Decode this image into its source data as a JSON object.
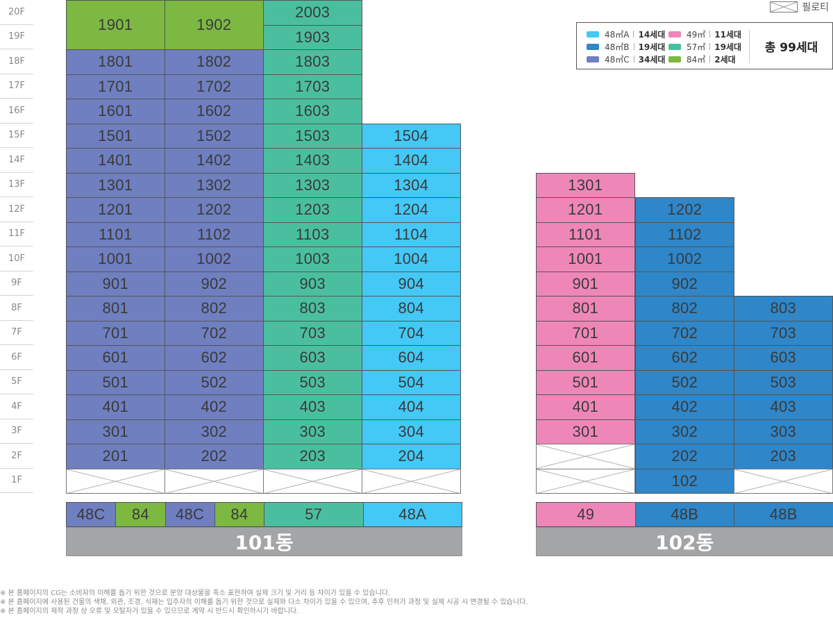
{
  "floors": [
    "20F",
    "19F",
    "18F",
    "17F",
    "16F",
    "15F",
    "14F",
    "13F",
    "12F",
    "11F",
    "10F",
    "9F",
    "8F",
    "7F",
    "6F",
    "5F",
    "4F",
    "3F",
    "2F",
    "1F"
  ],
  "colors": {
    "48A": "#44c8f5",
    "48B": "#2f86c8",
    "48C": "#6f7fc0",
    "49": "#ef86b8",
    "57": "#4abf9f",
    "84": "#7cb842",
    "piloti": "#ffffff"
  },
  "piloti_label": "필로티",
  "legend": {
    "items": [
      {
        "type": "48A",
        "area": "48㎡A",
        "count": "14세대"
      },
      {
        "type": "48B",
        "area": "48㎡B",
        "count": "19세대"
      },
      {
        "type": "48C",
        "area": "48㎡C",
        "count": "34세대"
      },
      {
        "type": "49",
        "area": "49㎡",
        "count": "11세대"
      },
      {
        "type": "57",
        "area": "57㎡",
        "count": "19세대"
      },
      {
        "type": "84",
        "area": "84㎡",
        "count": "2세대"
      }
    ],
    "total": "총 99세대"
  },
  "buildings": [
    {
      "name": "101동",
      "lines": [
        {
          "units": [
            {
              "floor": "20F",
              "label": "1901",
              "type": "84",
              "span": 2
            },
            {
              "floor": "18F",
              "label": "1801",
              "type": "48C"
            },
            {
              "floor": "17F",
              "label": "1701",
              "type": "48C"
            },
            {
              "floor": "16F",
              "label": "1601",
              "type": "48C"
            },
            {
              "floor": "15F",
              "label": "1501",
              "type": "48C"
            },
            {
              "floor": "14F",
              "label": "1401",
              "type": "48C"
            },
            {
              "floor": "13F",
              "label": "1301",
              "type": "48C"
            },
            {
              "floor": "12F",
              "label": "1201",
              "type": "48C"
            },
            {
              "floor": "11F",
              "label": "1101",
              "type": "48C"
            },
            {
              "floor": "10F",
              "label": "1001",
              "type": "48C"
            },
            {
              "floor": "9F",
              "label": "901",
              "type": "48C"
            },
            {
              "floor": "8F",
              "label": "801",
              "type": "48C"
            },
            {
              "floor": "7F",
              "label": "701",
              "type": "48C"
            },
            {
              "floor": "6F",
              "label": "601",
              "type": "48C"
            },
            {
              "floor": "5F",
              "label": "501",
              "type": "48C"
            },
            {
              "floor": "4F",
              "label": "401",
              "type": "48C"
            },
            {
              "floor": "3F",
              "label": "301",
              "type": "48C"
            },
            {
              "floor": "2F",
              "label": "201",
              "type": "48C"
            },
            {
              "floor": "1F",
              "label": "",
              "type": "piloti"
            }
          ]
        },
        {
          "units": [
            {
              "floor": "20F",
              "label": "1902",
              "type": "84",
              "span": 2
            },
            {
              "floor": "18F",
              "label": "1802",
              "type": "48C"
            },
            {
              "floor": "17F",
              "label": "1702",
              "type": "48C"
            },
            {
              "floor": "16F",
              "label": "1602",
              "type": "48C"
            },
            {
              "floor": "15F",
              "label": "1502",
              "type": "48C"
            },
            {
              "floor": "14F",
              "label": "1402",
              "type": "48C"
            },
            {
              "floor": "13F",
              "label": "1302",
              "type": "48C"
            },
            {
              "floor": "12F",
              "label": "1202",
              "type": "48C"
            },
            {
              "floor": "11F",
              "label": "1102",
              "type": "48C"
            },
            {
              "floor": "10F",
              "label": "1002",
              "type": "48C"
            },
            {
              "floor": "9F",
              "label": "902",
              "type": "48C"
            },
            {
              "floor": "8F",
              "label": "802",
              "type": "48C"
            },
            {
              "floor": "7F",
              "label": "702",
              "type": "48C"
            },
            {
              "floor": "6F",
              "label": "602",
              "type": "48C"
            },
            {
              "floor": "5F",
              "label": "502",
              "type": "48C"
            },
            {
              "floor": "4F",
              "label": "402",
              "type": "48C"
            },
            {
              "floor": "3F",
              "label": "302",
              "type": "48C"
            },
            {
              "floor": "2F",
              "label": "202",
              "type": "48C"
            },
            {
              "floor": "1F",
              "label": "",
              "type": "piloti"
            }
          ]
        },
        {
          "units": [
            {
              "floor": "20F",
              "label": "2003",
              "type": "57"
            },
            {
              "floor": "19F",
              "label": "1903",
              "type": "57"
            },
            {
              "floor": "18F",
              "label": "1803",
              "type": "57"
            },
            {
              "floor": "17F",
              "label": "1703",
              "type": "57"
            },
            {
              "floor": "16F",
              "label": "1603",
              "type": "57"
            },
            {
              "floor": "15F",
              "label": "1503",
              "type": "57"
            },
            {
              "floor": "14F",
              "label": "1403",
              "type": "57"
            },
            {
              "floor": "13F",
              "label": "1303",
              "type": "57"
            },
            {
              "floor": "12F",
              "label": "1203",
              "type": "57"
            },
            {
              "floor": "11F",
              "label": "1103",
              "type": "57"
            },
            {
              "floor": "10F",
              "label": "1003",
              "type": "57"
            },
            {
              "floor": "9F",
              "label": "903",
              "type": "57"
            },
            {
              "floor": "8F",
              "label": "803",
              "type": "57"
            },
            {
              "floor": "7F",
              "label": "703",
              "type": "57"
            },
            {
              "floor": "6F",
              "label": "603",
              "type": "57"
            },
            {
              "floor": "5F",
              "label": "503",
              "type": "57"
            },
            {
              "floor": "4F",
              "label": "403",
              "type": "57"
            },
            {
              "floor": "3F",
              "label": "303",
              "type": "57"
            },
            {
              "floor": "2F",
              "label": "203",
              "type": "57"
            },
            {
              "floor": "1F",
              "label": "",
              "type": "piloti"
            }
          ]
        },
        {
          "units": [
            {
              "floor": "15F",
              "label": "1504",
              "type": "48A"
            },
            {
              "floor": "14F",
              "label": "1404",
              "type": "48A"
            },
            {
              "floor": "13F",
              "label": "1304",
              "type": "48A"
            },
            {
              "floor": "12F",
              "label": "1204",
              "type": "48A"
            },
            {
              "floor": "11F",
              "label": "1104",
              "type": "48A"
            },
            {
              "floor": "10F",
              "label": "1004",
              "type": "48A"
            },
            {
              "floor": "9F",
              "label": "904",
              "type": "48A"
            },
            {
              "floor": "8F",
              "label": "804",
              "type": "48A"
            },
            {
              "floor": "7F",
              "label": "704",
              "type": "48A"
            },
            {
              "floor": "6F",
              "label": "604",
              "type": "48A"
            },
            {
              "floor": "5F",
              "label": "504",
              "type": "48A"
            },
            {
              "floor": "4F",
              "label": "404",
              "type": "48A"
            },
            {
              "floor": "3F",
              "label": "304",
              "type": "48A"
            },
            {
              "floor": "2F",
              "label": "204",
              "type": "48A"
            },
            {
              "floor": "1F",
              "label": "",
              "type": "piloti"
            }
          ]
        }
      ],
      "type_strip": [
        {
          "label": "48C",
          "type": "48C"
        },
        {
          "label": "84",
          "type": "84"
        },
        {
          "label": "48C",
          "type": "48C"
        },
        {
          "label": "84",
          "type": "84"
        },
        {
          "label": "57",
          "type": "57"
        },
        {
          "label": "48A",
          "type": "48A"
        }
      ]
    },
    {
      "name": "102동",
      "lines": [
        {
          "units": [
            {
              "floor": "13F",
              "label": "1301",
              "type": "49"
            },
            {
              "floor": "12F",
              "label": "1201",
              "type": "49"
            },
            {
              "floor": "11F",
              "label": "1101",
              "type": "49"
            },
            {
              "floor": "10F",
              "label": "1001",
              "type": "49"
            },
            {
              "floor": "9F",
              "label": "901",
              "type": "49"
            },
            {
              "floor": "8F",
              "label": "801",
              "type": "49"
            },
            {
              "floor": "7F",
              "label": "701",
              "type": "49"
            },
            {
              "floor": "6F",
              "label": "601",
              "type": "49"
            },
            {
              "floor": "5F",
              "label": "501",
              "type": "49"
            },
            {
              "floor": "4F",
              "label": "401",
              "type": "49"
            },
            {
              "floor": "3F",
              "label": "301",
              "type": "49"
            },
            {
              "floor": "2F",
              "label": "",
              "type": "piloti"
            },
            {
              "floor": "1F",
              "label": "",
              "type": "piloti"
            }
          ]
        },
        {
          "units": [
            {
              "floor": "12F",
              "label": "1202",
              "type": "48B"
            },
            {
              "floor": "11F",
              "label": "1102",
              "type": "48B"
            },
            {
              "floor": "10F",
              "label": "1002",
              "type": "48B"
            },
            {
              "floor": "9F",
              "label": "902",
              "type": "48B"
            },
            {
              "floor": "8F",
              "label": "802",
              "type": "48B"
            },
            {
              "floor": "7F",
              "label": "702",
              "type": "48B"
            },
            {
              "floor": "6F",
              "label": "602",
              "type": "48B"
            },
            {
              "floor": "5F",
              "label": "502",
              "type": "48B"
            },
            {
              "floor": "4F",
              "label": "402",
              "type": "48B"
            },
            {
              "floor": "3F",
              "label": "302",
              "type": "48B"
            },
            {
              "floor": "2F",
              "label": "202",
              "type": "48B"
            },
            {
              "floor": "1F",
              "label": "102",
              "type": "48B"
            }
          ]
        },
        {
          "units": [
            {
              "floor": "8F",
              "label": "803",
              "type": "48B"
            },
            {
              "floor": "7F",
              "label": "703",
              "type": "48B"
            },
            {
              "floor": "6F",
              "label": "603",
              "type": "48B"
            },
            {
              "floor": "5F",
              "label": "503",
              "type": "48B"
            },
            {
              "floor": "4F",
              "label": "403",
              "type": "48B"
            },
            {
              "floor": "3F",
              "label": "303",
              "type": "48B"
            },
            {
              "floor": "2F",
              "label": "203",
              "type": "48B"
            },
            {
              "floor": "1F",
              "label": "",
              "type": "piloti"
            }
          ]
        }
      ],
      "type_strip": [
        {
          "label": "49",
          "type": "49"
        },
        {
          "label": "48B",
          "type": "48B"
        },
        {
          "label": "48B",
          "type": "48B"
        }
      ]
    }
  ],
  "notes": [
    "※ 본 홈페이지의 CG는 소비자의 이해를 돕기 위한 것으로 분양 대상물을 축소 표현하여 실제 크기 및 거리 등 차이가 있을 수 있습니다.",
    "※ 본 홈페이지에 사용된 건물의 색채, 외관, 조경, 식재는 입주자의 이해를 돕기 위한 것으로 실제와 다소 차이가 있을 수 있으며, 추후 인허가 과정 및 실제 시공 시 변경될 수 있습니다.",
    "※ 본 홈페이지의 제작 과정 상 오류 및 오탈자가 있을 수 있으므로 계약 시 반드시 확인하시기 바랍니다."
  ]
}
